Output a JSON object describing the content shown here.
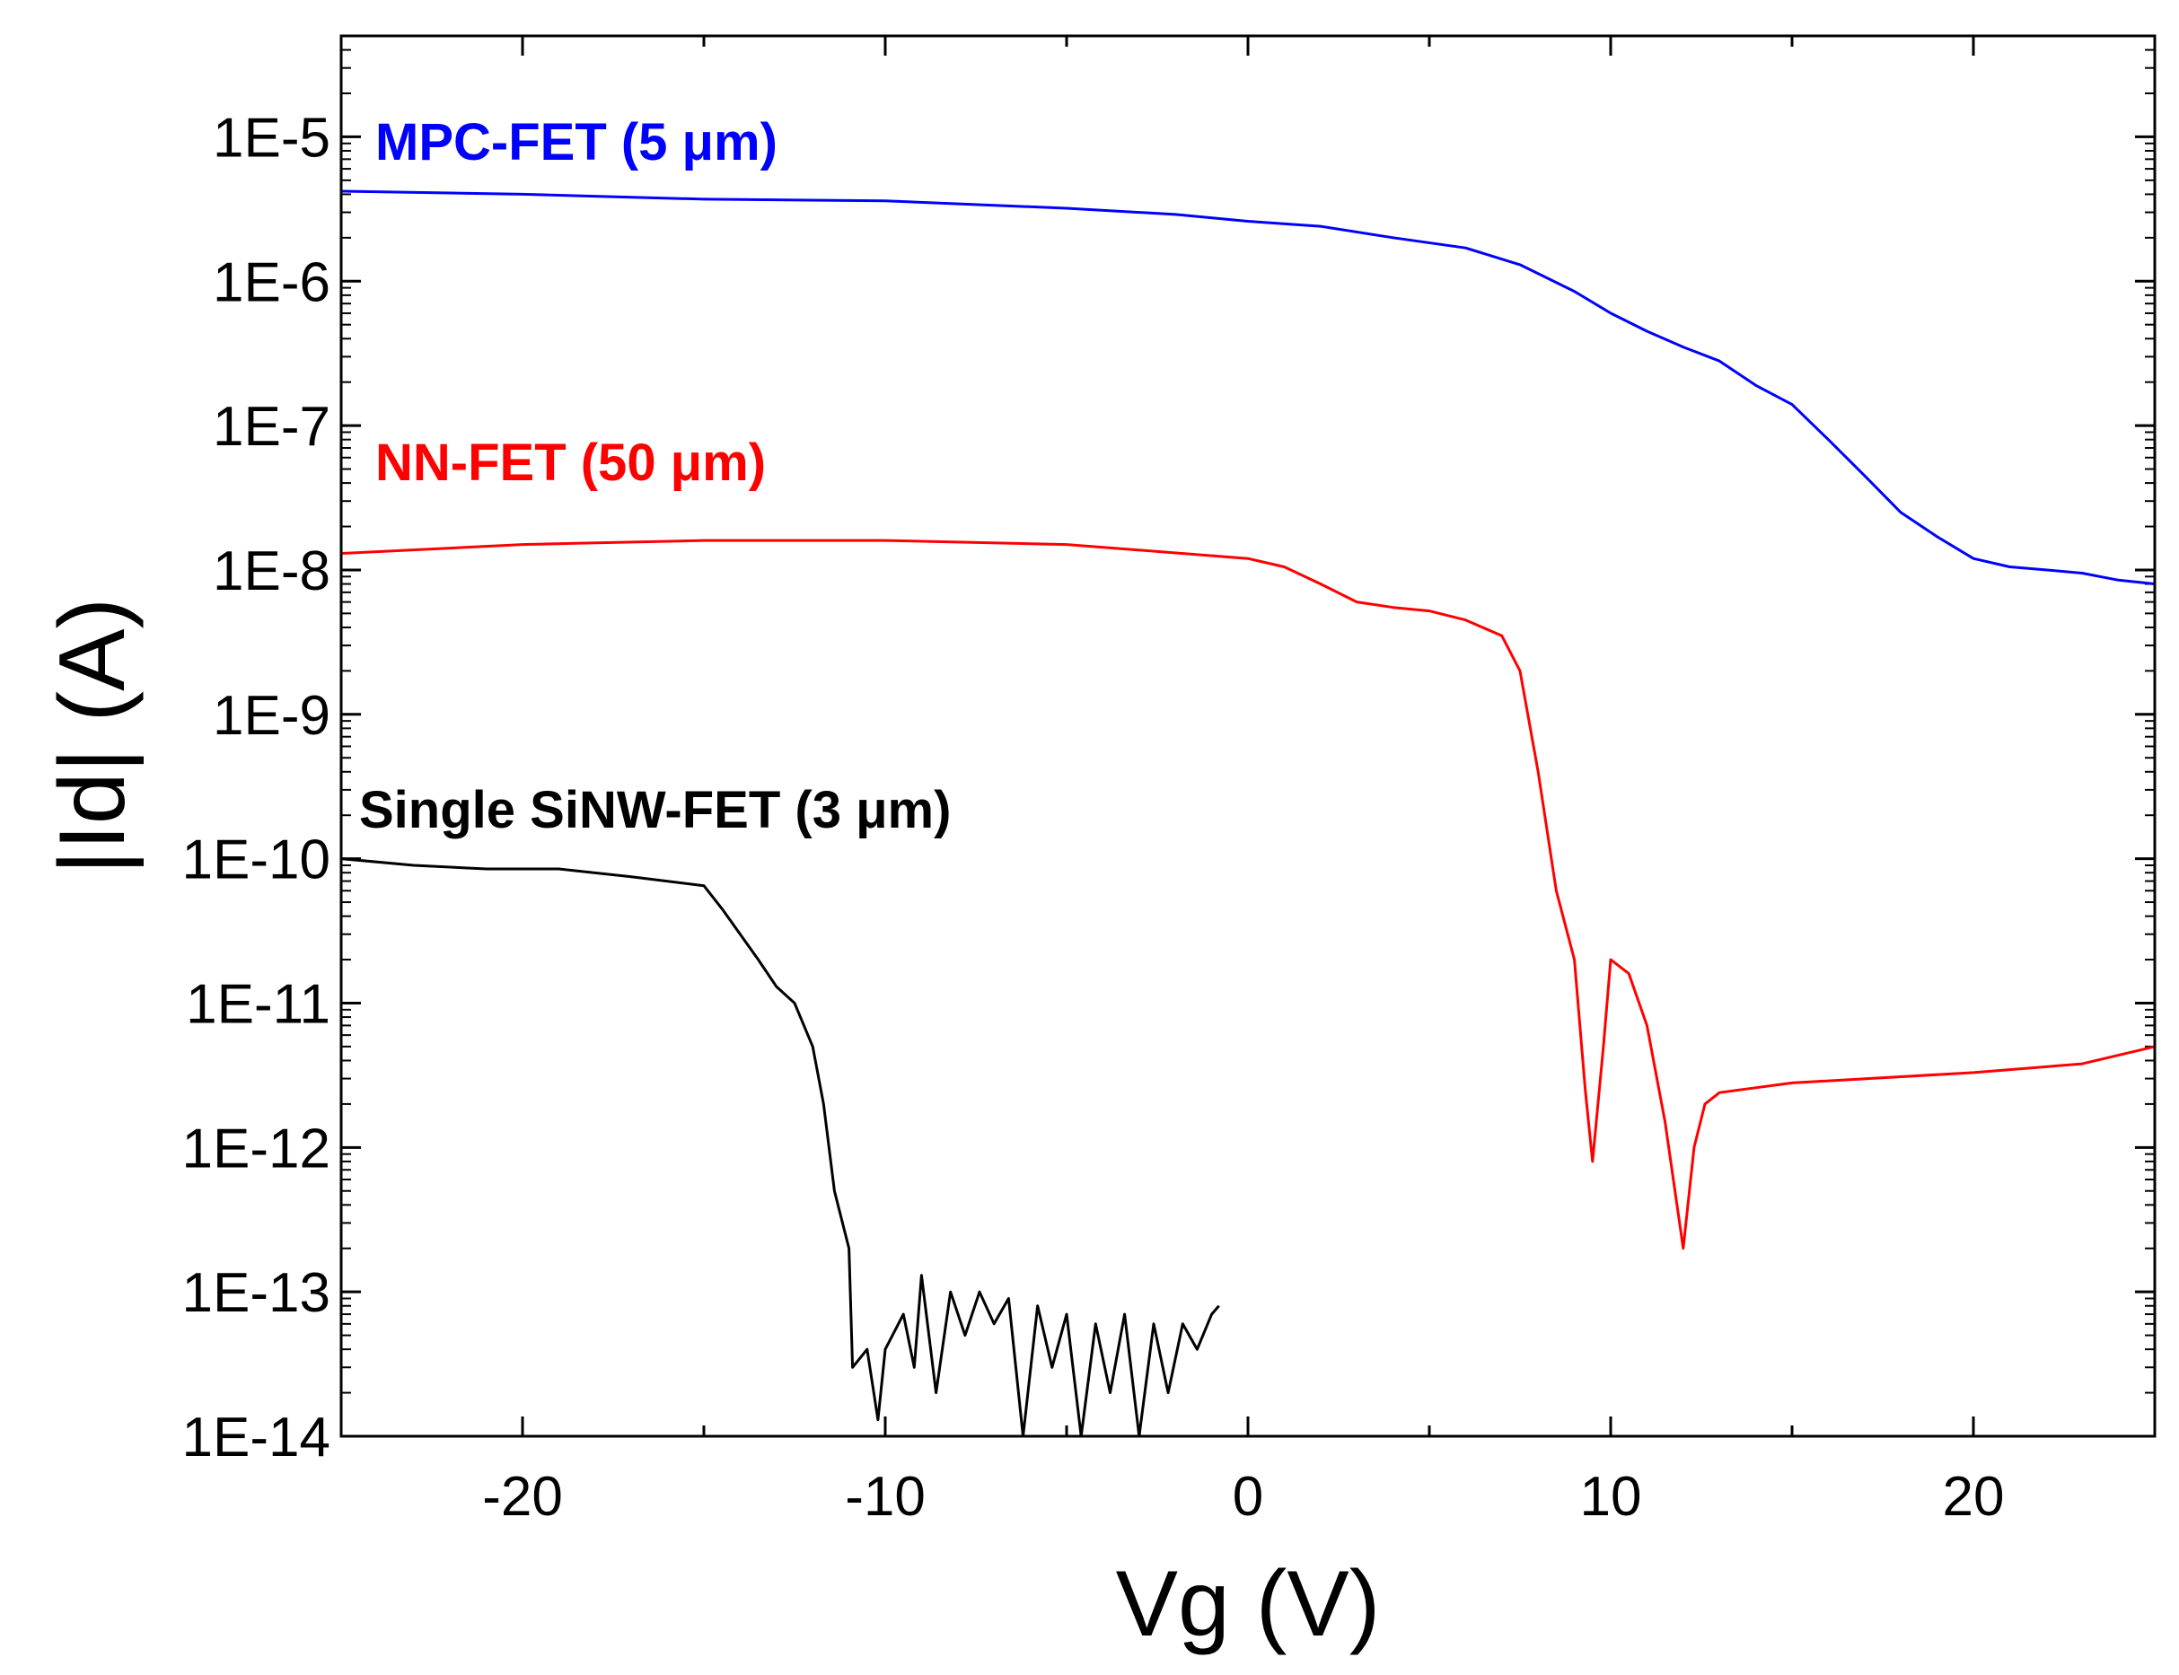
{
  "chart_data": {
    "type": "line",
    "xlabel": "Vg (V)",
    "ylabel": "|Id| (A)",
    "xlim": [
      -25,
      25
    ],
    "ylim": [
      1e-14,
      5e-05
    ],
    "yscale": "log",
    "x_ticks": [
      -20,
      -10,
      0,
      10,
      20
    ],
    "x_tick_labels": [
      "-20",
      "-10",
      "0",
      "10",
      "20"
    ],
    "y_ticks": [
      1e-14,
      1e-13,
      1e-12,
      1e-11,
      1e-10,
      1e-09,
      1e-08,
      1e-07,
      1e-06,
      1e-05
    ],
    "y_tick_labels": [
      "1E-14",
      "1E-13",
      "1E-12",
      "1E-11",
      "1E-10",
      "1E-9",
      "1E-8",
      "1E-7",
      "1E-6",
      "1E-5"
    ],
    "grid": false,
    "legend": "none",
    "series": [
      {
        "name": "MPC-FET (5 μm)",
        "color": "#0000ff",
        "points": [
          [
            -25,
            4.2e-06
          ],
          [
            -20,
            4e-06
          ],
          [
            -15,
            3.7e-06
          ],
          [
            -10,
            3.6e-06
          ],
          [
            -5,
            3.2e-06
          ],
          [
            -2,
            2.9e-06
          ],
          [
            0,
            2.6e-06
          ],
          [
            2,
            2.4e-06
          ],
          [
            4,
            2e-06
          ],
          [
            6,
            1.7e-06
          ],
          [
            7.5,
            1.3e-06
          ],
          [
            9,
            8.5e-07
          ],
          [
            10,
            6e-07
          ],
          [
            11,
            4.5e-07
          ],
          [
            12,
            3.5e-07
          ],
          [
            13,
            2.8e-07
          ],
          [
            14,
            1.9e-07
          ],
          [
            15,
            1.4e-07
          ],
          [
            16,
            8e-08
          ],
          [
            17,
            4.5e-08
          ],
          [
            18,
            2.5e-08
          ],
          [
            19,
            1.7e-08
          ],
          [
            20,
            1.2e-08
          ],
          [
            21,
            1.05e-08
          ],
          [
            22,
            1e-08
          ],
          [
            23,
            9.5e-09
          ],
          [
            24,
            8.5e-09
          ],
          [
            25,
            8e-09
          ]
        ]
      },
      {
        "name": "NN-FET (50 μm)",
        "color": "#ff0000",
        "points": [
          [
            -25,
            1.3e-08
          ],
          [
            -20,
            1.5e-08
          ],
          [
            -15,
            1.6e-08
          ],
          [
            -10,
            1.6e-08
          ],
          [
            -5,
            1.5e-08
          ],
          [
            0,
            1.2e-08
          ],
          [
            1,
            1.05e-08
          ],
          [
            2,
            8e-09
          ],
          [
            3,
            6e-09
          ],
          [
            4,
            5.5e-09
          ],
          [
            5,
            5.2e-09
          ],
          [
            6,
            4.5e-09
          ],
          [
            7,
            3.5e-09
          ],
          [
            7.5,
            2e-09
          ],
          [
            8,
            4e-10
          ],
          [
            8.5,
            6e-11
          ],
          [
            9,
            2e-11
          ],
          [
            9.3,
            2.5e-12
          ],
          [
            9.5,
            8e-13
          ],
          [
            9.8,
            5e-12
          ],
          [
            10,
            2e-11
          ],
          [
            10.5,
            1.6e-11
          ],
          [
            11,
            7e-12
          ],
          [
            11.5,
            1.5e-12
          ],
          [
            12,
            2e-13
          ],
          [
            12.3,
            1e-12
          ],
          [
            12.6,
            2e-12
          ],
          [
            13,
            2.4e-12
          ],
          [
            15,
            2.8e-12
          ],
          [
            20,
            3.3e-12
          ],
          [
            23,
            3.8e-12
          ],
          [
            25,
            5e-12
          ]
        ]
      },
      {
        "name": "Single SiNW-FET (3 μm)",
        "color": "#000000",
        "points": [
          [
            -25,
            1e-10
          ],
          [
            -23,
            9e-11
          ],
          [
            -21,
            8.5e-11
          ],
          [
            -19,
            8.5e-11
          ],
          [
            -17,
            7.5e-11
          ],
          [
            -15,
            6.5e-11
          ],
          [
            -14.5,
            4.5e-11
          ],
          [
            -14,
            3e-11
          ],
          [
            -13.5,
            2e-11
          ],
          [
            -13,
            1.3e-11
          ],
          [
            -12.5,
            1e-11
          ],
          [
            -12,
            5e-12
          ],
          [
            -11.7,
            2e-12
          ],
          [
            -11.4,
            5e-13
          ],
          [
            -11,
            2e-13
          ],
          [
            -10.9,
            3e-14
          ],
          [
            -10.5,
            4e-14
          ],
          [
            -10.2,
            1.3e-14
          ],
          [
            -10,
            4e-14
          ],
          [
            -9.5,
            7e-14
          ],
          [
            -9.2,
            3e-14
          ],
          [
            -9,
            1.3e-13
          ],
          [
            -8.6,
            2e-14
          ],
          [
            -8.2,
            1e-13
          ],
          [
            -7.8,
            5e-14
          ],
          [
            -7.4,
            1e-13
          ],
          [
            -7,
            6e-14
          ],
          [
            -6.6,
            9e-14
          ],
          [
            -6.2,
            1e-14
          ],
          [
            -5.8,
            8e-14
          ],
          [
            -5.4,
            3e-14
          ],
          [
            -5,
            7e-14
          ],
          [
            -4.6,
            1e-14
          ],
          [
            -4.2,
            6e-14
          ],
          [
            -3.8,
            2e-14
          ],
          [
            -3.4,
            7e-14
          ],
          [
            -3,
            1e-14
          ],
          [
            -2.6,
            6e-14
          ],
          [
            -2.2,
            2e-14
          ],
          [
            -1.8,
            6e-14
          ],
          [
            -1.4,
            4e-14
          ],
          [
            -1,
            7e-14
          ],
          [
            -0.8,
            8e-14
          ]
        ]
      }
    ]
  }
}
